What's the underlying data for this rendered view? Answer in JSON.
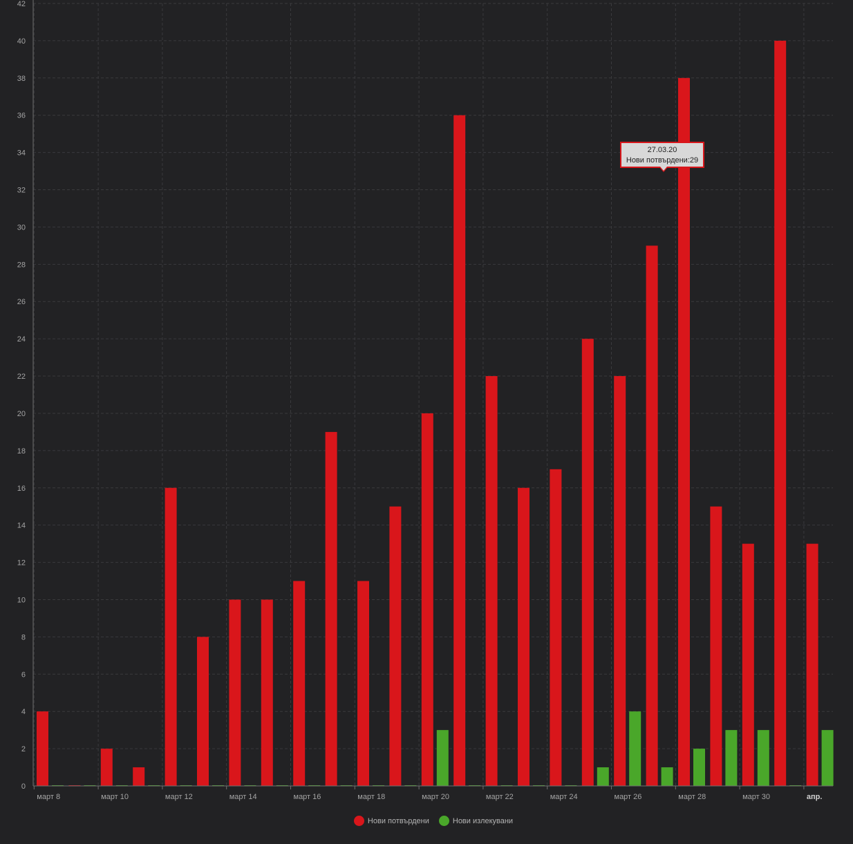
{
  "chart_data": {
    "type": "bar",
    "categories": [
      "8.03",
      "9.03",
      "10.03",
      "11.03",
      "12.03",
      "13.03",
      "14.03",
      "15.03",
      "16.03",
      "17.03",
      "18.03",
      "19.03",
      "20.03",
      "21.03",
      "22.03",
      "23.03",
      "24.03",
      "25.03",
      "26.03",
      "27.03",
      "28.03",
      "29.03",
      "30.03",
      "31.03",
      "1.04"
    ],
    "series": [
      {
        "name": "Нови потвърдени",
        "color": "#d9161b",
        "values": [
          4,
          0,
          2,
          1,
          16,
          8,
          10,
          10,
          11,
          19,
          11,
          15,
          20,
          36,
          22,
          16,
          17,
          24,
          22,
          29,
          38,
          15,
          13,
          40,
          13
        ]
      },
      {
        "name": "Нови излекувани",
        "color": "#4aa72a",
        "values": [
          0,
          0,
          0,
          0,
          0,
          0,
          0,
          0,
          0,
          0,
          0,
          0,
          3,
          0,
          0,
          0,
          0,
          1,
          4,
          1,
          2,
          3,
          3,
          0,
          3
        ]
      }
    ],
    "x_tick_labels": [
      {
        "label": "март 8",
        "index": 0
      },
      {
        "label": "март 10",
        "index": 2
      },
      {
        "label": "март 12",
        "index": 4
      },
      {
        "label": "март 14",
        "index": 6
      },
      {
        "label": "март 16",
        "index": 8
      },
      {
        "label": "март 18",
        "index": 10
      },
      {
        "label": "март 20",
        "index": 12
      },
      {
        "label": "март 22",
        "index": 14
      },
      {
        "label": "март 24",
        "index": 16
      },
      {
        "label": "март 26",
        "index": 18
      },
      {
        "label": "март 28",
        "index": 20
      },
      {
        "label": "март 30",
        "index": 22
      },
      {
        "label": "апр.",
        "index": 24,
        "bold": true
      }
    ],
    "y_ticks": [
      0,
      2,
      4,
      6,
      8,
      10,
      12,
      14,
      16,
      18,
      20,
      22,
      24,
      26,
      28,
      30,
      32,
      34,
      36,
      38,
      40,
      42
    ],
    "ylim": [
      0,
      42
    ],
    "grid": true,
    "legend_position": "bottom-center",
    "tooltip": {
      "title": "27.03.20",
      "text": "Нови потвърдени:29"
    }
  },
  "colors": {
    "background": "#222224",
    "grid": "#3a3a3d",
    "axis": "#707070"
  }
}
